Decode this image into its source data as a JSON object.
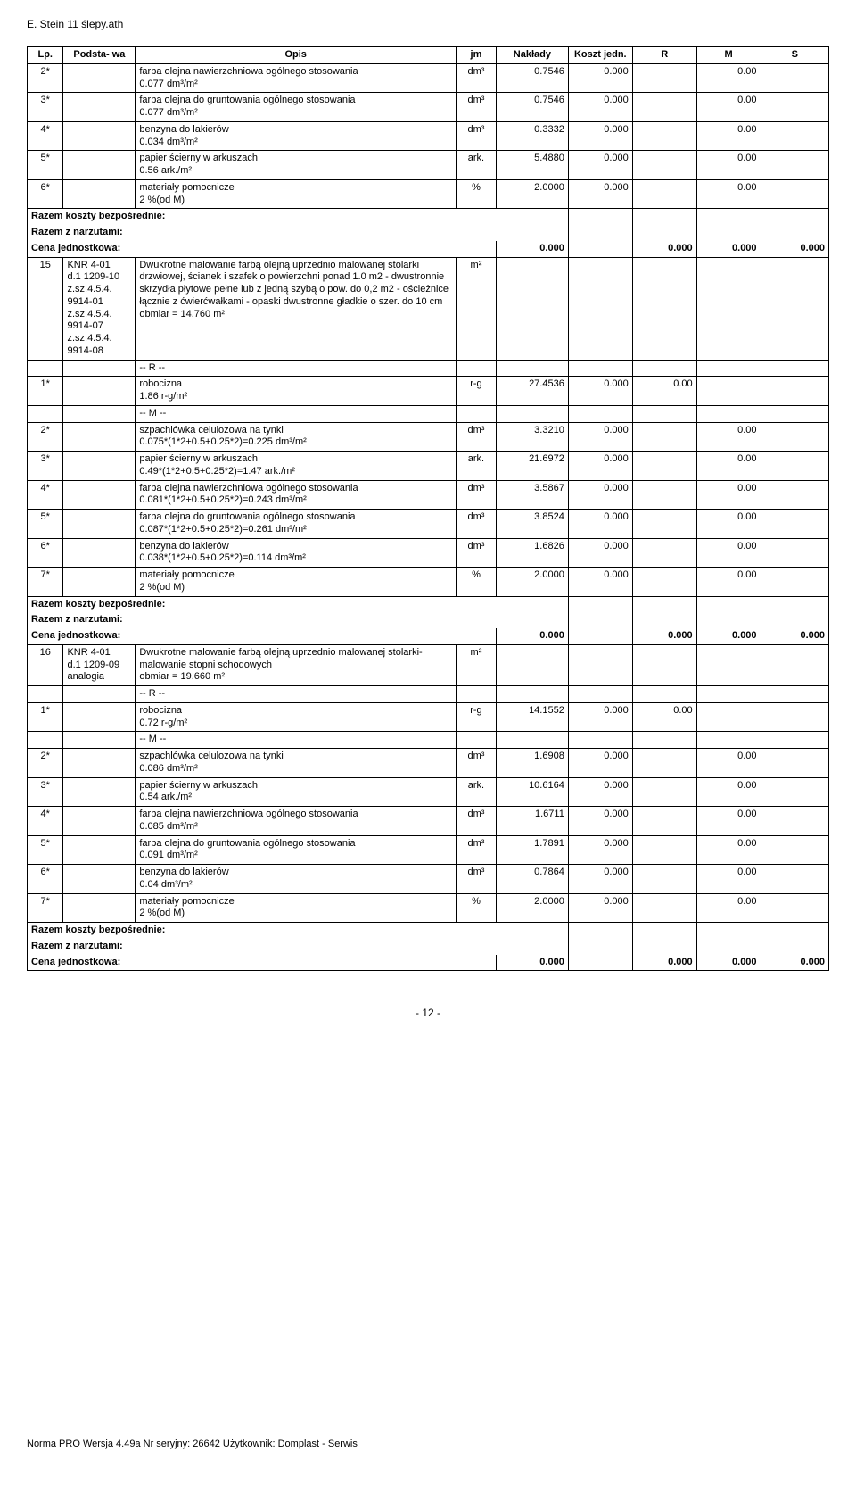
{
  "header": "E. Stein 11 ślepy.ath",
  "cols": {
    "lp": "Lp.",
    "pod": "Podsta-\nwa",
    "opis": "Opis",
    "jm": "jm",
    "nak": "Nakłady",
    "koszt": "Koszt\njedn.",
    "r": "R",
    "m": "M",
    "s": "S"
  },
  "sec1": {
    "rows": [
      {
        "lp": "2*",
        "opis": "farba olejna nawierzchniowa ogólnego stosowania\n0.077 dm³/m²",
        "jm": "dm³",
        "nak": "0.7546",
        "koszt": "0.000",
        "m": "0.00"
      },
      {
        "lp": "3*",
        "opis": "farba olejna do gruntowania ogólnego stosowania\n0.077 dm³/m²",
        "jm": "dm³",
        "nak": "0.7546",
        "koszt": "0.000",
        "m": "0.00"
      },
      {
        "lp": "4*",
        "opis": "benzyna do lakierów\n0.034 dm³/m²",
        "jm": "dm³",
        "nak": "0.3332",
        "koszt": "0.000",
        "m": "0.00"
      },
      {
        "lp": "5*",
        "opis": "papier ścierny w arkuszach\n0.56 ark./m²",
        "jm": "ark.",
        "nak": "5.4880",
        "koszt": "0.000",
        "m": "0.00"
      },
      {
        "lp": "6*",
        "opis": "materiały pomocnicze\n2 %(od M)",
        "jm": "%",
        "nak": "2.0000",
        "koszt": "0.000",
        "m": "0.00"
      }
    ]
  },
  "sec2": {
    "item": {
      "lp": "15",
      "pod": "KNR 4-01\nd.1 1209-10\nz.sz.4.5.4.\n9914-01\nz.sz.4.5.4.\n9914-07\nz.sz.4.5.4.\n9914-08",
      "opis": "Dwukrotne malowanie farbą olejną uprzednio malowanej stolarki drzwiowej, ścianek i szafek o powierzchni ponad 1.0 m2 - dwustronnie skrzydła płytowe pełne lub z jedną szybą o pow. do 0,2 m2 - ościeżnice łącznie z ćwierćwałkami - opaski dwustronne gładkie o szer. do 10 cm\nobmiar  =  14.760 m²",
      "jm": "m²"
    },
    "r_head": "-- R --",
    "r_row": {
      "lp": "1*",
      "opis": "robocizna\n1.86 r-g/m²",
      "jm": "r-g",
      "nak": "27.4536",
      "koszt": "0.000",
      "r": "0.00"
    },
    "m_head": "-- M --",
    "rows": [
      {
        "lp": "2*",
        "opis": "szpachlówka celulozowa na tynki\n0.075*(1*2+0.5+0.25*2)=0.225 dm³/m²",
        "jm": "dm³",
        "nak": "3.3210",
        "koszt": "0.000",
        "m": "0.00"
      },
      {
        "lp": "3*",
        "opis": "papier ścierny w arkuszach\n0.49*(1*2+0.5+0.25*2)=1.47 ark./m²",
        "jm": "ark.",
        "nak": "21.6972",
        "koszt": "0.000",
        "m": "0.00"
      },
      {
        "lp": "4*",
        "opis": "farba olejna nawierzchniowa ogólnego stosowania\n0.081*(1*2+0.5+0.25*2)=0.243 dm³/m²",
        "jm": "dm³",
        "nak": "3.5867",
        "koszt": "0.000",
        "m": "0.00"
      },
      {
        "lp": "5*",
        "opis": "farba olejna do gruntowania ogólnego stosowania\n0.087*(1*2+0.5+0.25*2)=0.261 dm³/m²",
        "jm": "dm³",
        "nak": "3.8524",
        "koszt": "0.000",
        "m": "0.00"
      },
      {
        "lp": "6*",
        "opis": "benzyna do lakierów\n0.038*(1*2+0.5+0.25*2)=0.114 dm³/m²",
        "jm": "dm³",
        "nak": "1.6826",
        "koszt": "0.000",
        "m": "0.00"
      },
      {
        "lp": "7*",
        "opis": "materiały pomocnicze\n2 %(od M)",
        "jm": "%",
        "nak": "2.0000",
        "koszt": "0.000",
        "m": "0.00"
      }
    ]
  },
  "sec3": {
    "item": {
      "lp": "16",
      "pod": "KNR 4-01\nd.1 1209-09\nanalogia",
      "opis": "Dwukrotne malowanie farbą olejną uprzednio malowanej stolarki- malowanie stopni schodowych\nobmiar  =  19.660 m²",
      "jm": "m²"
    },
    "r_head": "-- R --",
    "r_row": {
      "lp": "1*",
      "opis": "robocizna\n0.72 r-g/m²",
      "jm": "r-g",
      "nak": "14.1552",
      "koszt": "0.000",
      "r": "0.00"
    },
    "m_head": "-- M --",
    "rows": [
      {
        "lp": "2*",
        "opis": "szpachlówka celulozowa na tynki\n0.086 dm³/m²",
        "jm": "dm³",
        "nak": "1.6908",
        "koszt": "0.000",
        "m": "0.00"
      },
      {
        "lp": "3*",
        "opis": "papier ścierny w arkuszach\n0.54 ark./m²",
        "jm": "ark.",
        "nak": "10.6164",
        "koszt": "0.000",
        "m": "0.00"
      },
      {
        "lp": "4*",
        "opis": "farba olejna nawierzchniowa ogólnego stosowania\n0.085 dm³/m²",
        "jm": "dm³",
        "nak": "1.6711",
        "koszt": "0.000",
        "m": "0.00"
      },
      {
        "lp": "5*",
        "opis": "farba olejna do gruntowania ogólnego stosowania\n0.091 dm³/m²",
        "jm": "dm³",
        "nak": "1.7891",
        "koszt": "0.000",
        "m": "0.00"
      },
      {
        "lp": "6*",
        "opis": "benzyna do lakierów\n0.04 dm³/m²",
        "jm": "dm³",
        "nak": "0.7864",
        "koszt": "0.000",
        "m": "0.00"
      },
      {
        "lp": "7*",
        "opis": "materiały pomocnicze\n2 %(od M)",
        "jm": "%",
        "nak": "2.0000",
        "koszt": "0.000",
        "m": "0.00"
      }
    ]
  },
  "summary": {
    "line1": "Razem koszty bezpośrednie:",
    "line2": "Razem z narzutami:",
    "line3a": "Cena jednostkowa:",
    "line3b": "0.000",
    "r": "0.000",
    "m": "0.000",
    "s": "0.000"
  },
  "page_num": "- 12 -",
  "footer": "Norma PRO Wersja 4.49a Nr seryjny: 26642 Użytkownik: Domplast - Serwis"
}
